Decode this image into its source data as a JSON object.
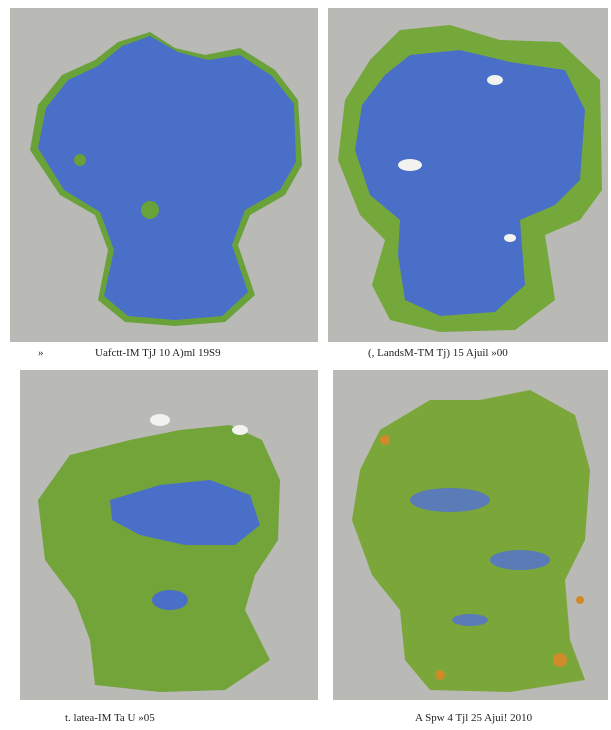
{
  "marker": "»",
  "panels": [
    {
      "caption": "Uafctt-IM TjJ 10 A)ml 19S9"
    },
    {
      "caption": "(, LandsM-TM Tj) 15 Ajuil »00"
    },
    {
      "caption": "t. latea-IM Ta U »05"
    },
    {
      "caption": "A Spw 4 Tjl 25 Ajui! 2010"
    }
  ]
}
